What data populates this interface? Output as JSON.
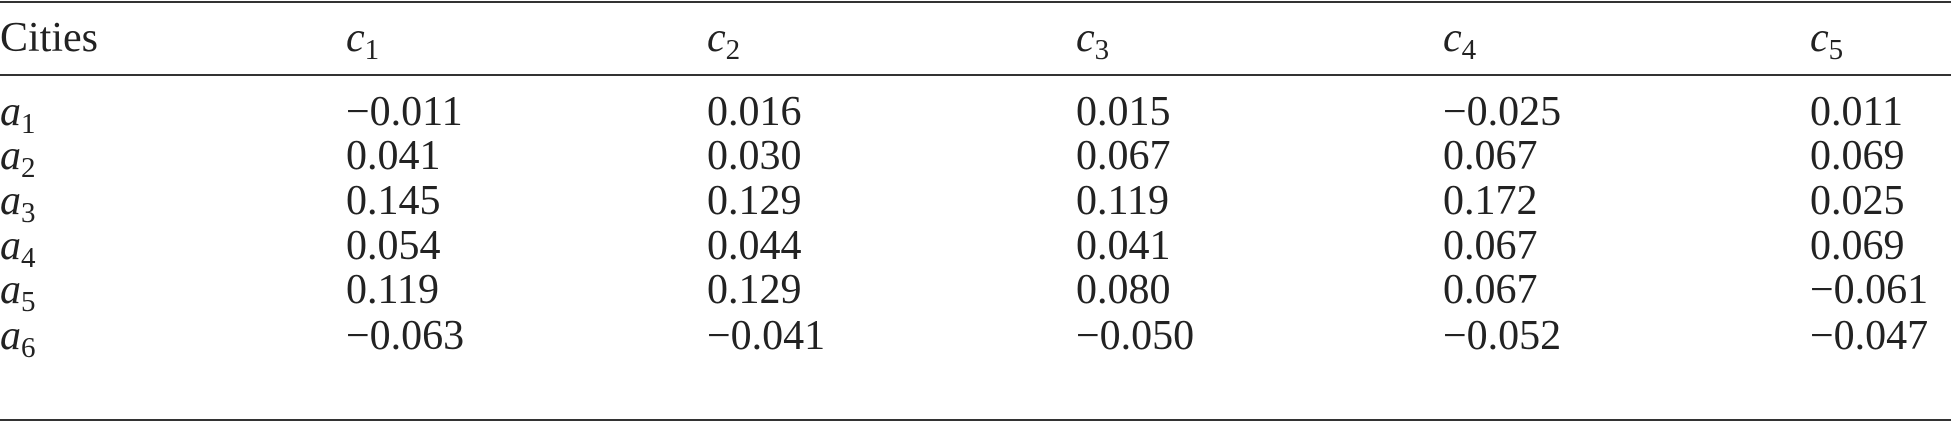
{
  "table": {
    "header": [
      "Cities",
      {
        "symbol": "c",
        "subscript": "1"
      },
      {
        "symbol": "c",
        "subscript": "2"
      },
      {
        "symbol": "c",
        "subscript": "3"
      },
      {
        "symbol": "c",
        "subscript": "4"
      },
      {
        "symbol": "c",
        "subscript": "5"
      }
    ],
    "rows": [
      [
        {
          "symbol": "a",
          "subscript": "1"
        },
        "−0.011",
        "0.016",
        "0.015",
        "−0.025",
        "0.011"
      ],
      [
        {
          "symbol": "a",
          "subscript": "2"
        },
        "0.041",
        "0.030",
        "0.067",
        "0.067",
        "0.069"
      ],
      [
        {
          "symbol": "a",
          "subscript": "3"
        },
        "0.145",
        "0.129",
        "0.119",
        "0.172",
        "0.025"
      ],
      [
        {
          "symbol": "a",
          "subscript": "4"
        },
        "0.054",
        "0.044",
        "0.041",
        "0.067",
        "0.069"
      ],
      [
        {
          "symbol": "a",
          "subscript": "5"
        },
        "0.119",
        "0.129",
        "0.080",
        "0.067",
        "−0.061"
      ],
      [
        {
          "symbol": "a",
          "subscript": "6"
        },
        "−0.063",
        "−0.041",
        "−0.050",
        "−0.052",
        "−0.047"
      ]
    ]
  }
}
